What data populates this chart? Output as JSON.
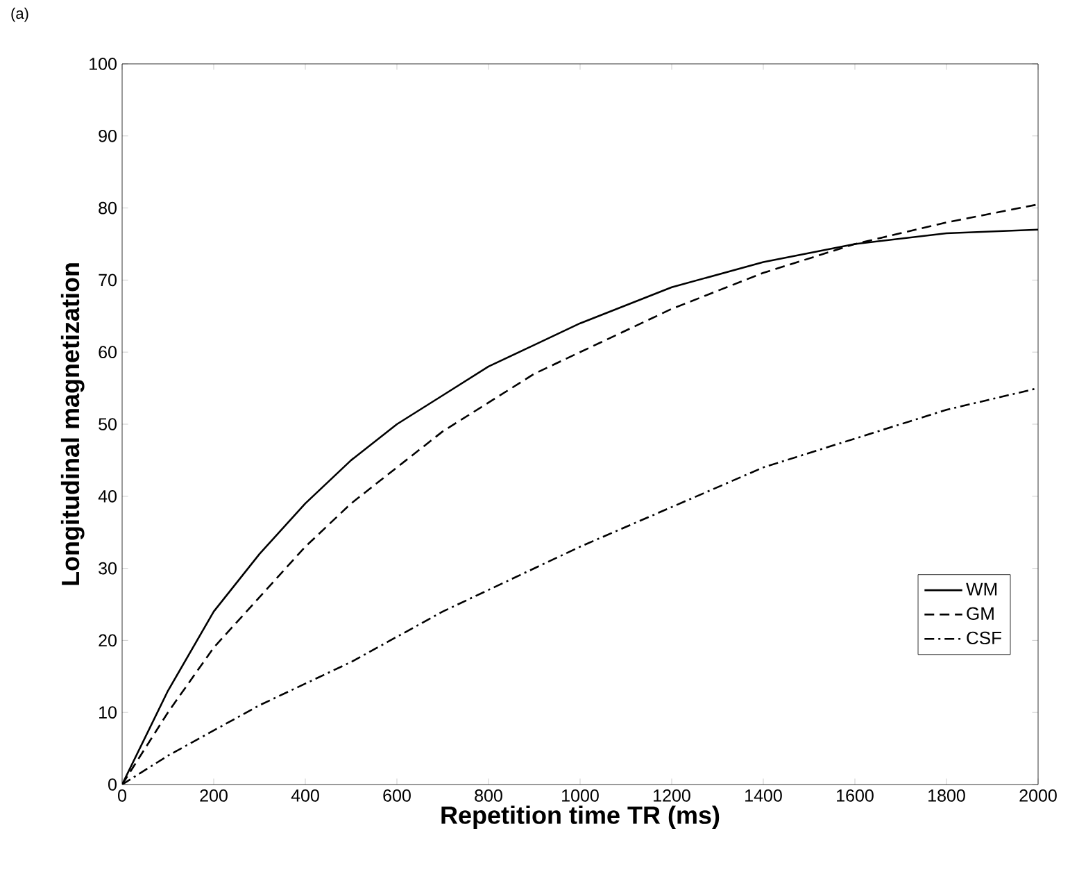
{
  "chart_data": {
    "type": "line",
    "xlabel": "Repetition time TR (ms)",
    "ylabel": "Longitudinal magnetization",
    "annotations": [
      "(a)"
    ],
    "x": [
      0,
      100,
      200,
      300,
      400,
      500,
      600,
      700,
      800,
      900,
      1000,
      1200,
      1400,
      1600,
      1800,
      2000
    ],
    "series": [
      {
        "name": "WM",
        "color": "#000000",
        "line_style": "solid",
        "values": [
          0,
          13,
          24,
          32,
          39,
          45,
          50,
          54,
          58,
          61,
          64,
          69,
          72.5,
          75,
          76.5,
          77
        ]
      },
      {
        "name": "GM",
        "color": "#000000",
        "line_style": "dashed",
        "values": [
          0,
          10,
          19,
          26,
          33,
          39,
          44,
          49,
          53,
          57,
          60,
          66,
          71,
          75,
          78,
          80.5
        ]
      },
      {
        "name": "CSF",
        "color": "#000000",
        "line_style": "dashdot",
        "values": [
          0,
          4,
          7.5,
          11,
          14,
          17,
          20.5,
          24,
          27,
          30,
          33,
          38.5,
          44,
          48,
          52,
          55
        ]
      }
    ],
    "xlim": [
      0,
      2000
    ],
    "ylim": [
      0,
      100
    ],
    "xticks": [
      0,
      200,
      400,
      600,
      800,
      1000,
      1200,
      1400,
      1600,
      1800,
      2000
    ],
    "yticks": [
      0,
      10,
      20,
      30,
      40,
      50,
      60,
      70,
      80,
      90,
      100
    ],
    "grid": false,
    "legend": "bottom right",
    "marker": "none"
  }
}
